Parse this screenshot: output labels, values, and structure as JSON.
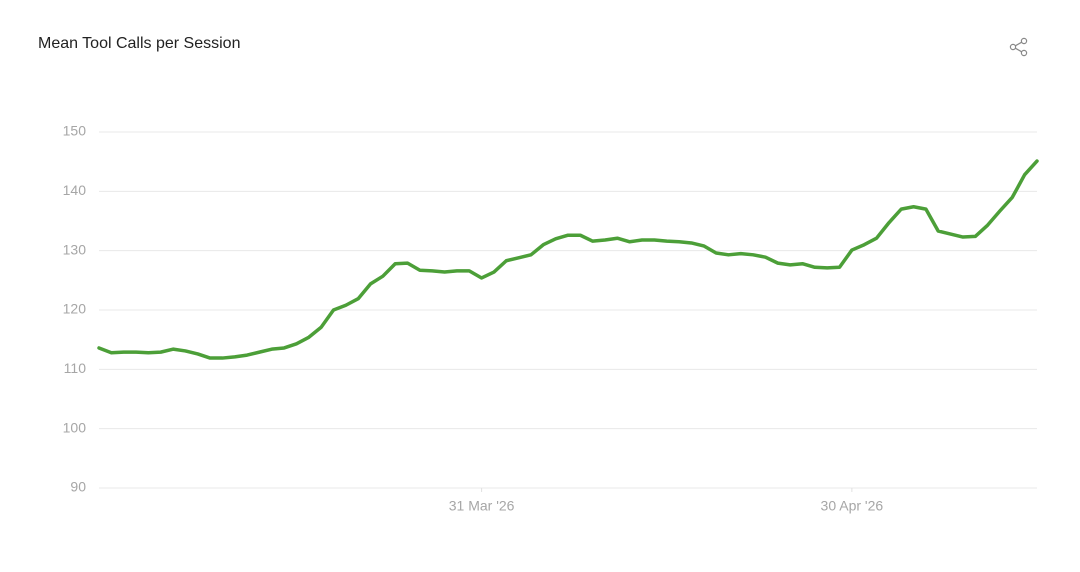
{
  "chart_data": {
    "type": "line",
    "title": "Mean Tool Calls per Session",
    "x": [
      "2026-02-28",
      "2026-03-01",
      "2026-03-02",
      "2026-03-03",
      "2026-03-04",
      "2026-03-05",
      "2026-03-06",
      "2026-03-07",
      "2026-03-08",
      "2026-03-09",
      "2026-03-10",
      "2026-03-11",
      "2026-03-12",
      "2026-03-13",
      "2026-03-14",
      "2026-03-15",
      "2026-03-16",
      "2026-03-17",
      "2026-03-18",
      "2026-03-19",
      "2026-03-20",
      "2026-03-21",
      "2026-03-22",
      "2026-03-23",
      "2026-03-24",
      "2026-03-25",
      "2026-03-26",
      "2026-03-27",
      "2026-03-28",
      "2026-03-29",
      "2026-03-30",
      "2026-03-31",
      "2026-04-01",
      "2026-04-02",
      "2026-04-03",
      "2026-04-04",
      "2026-04-05",
      "2026-04-06",
      "2026-04-07",
      "2026-04-08",
      "2026-04-09",
      "2026-04-10",
      "2026-04-11",
      "2026-04-12",
      "2026-04-13",
      "2026-04-14",
      "2026-04-15",
      "2026-04-16",
      "2026-04-17",
      "2026-04-18",
      "2026-04-19",
      "2026-04-20",
      "2026-04-21",
      "2026-04-22",
      "2026-04-23",
      "2026-04-24",
      "2026-04-25",
      "2026-04-26",
      "2026-04-27",
      "2026-04-28",
      "2026-04-29",
      "2026-04-30",
      "2026-05-01",
      "2026-05-02",
      "2026-05-03",
      "2026-05-04",
      "2026-05-05",
      "2026-05-06",
      "2026-05-07",
      "2026-05-08",
      "2026-05-09",
      "2026-05-10",
      "2026-05-11",
      "2026-05-12",
      "2026-05-13",
      "2026-05-14",
      "2026-05-15"
    ],
    "series": [
      {
        "name": "Mean Tool Calls per Session",
        "color": "#4c9f38",
        "values": [
          113.6,
          112.8,
          112.9,
          112.9,
          112.8,
          112.9,
          113.4,
          113.1,
          112.6,
          111.9,
          111.9,
          112.1,
          112.4,
          112.9,
          113.4,
          113.6,
          114.3,
          115.4,
          117.1,
          120.0,
          120.8,
          121.9,
          124.4,
          125.7,
          127.8,
          127.9,
          126.7,
          126.6,
          126.4,
          126.6,
          126.6,
          125.4,
          126.4,
          128.3,
          128.8,
          129.3,
          131.0,
          132.0,
          132.6,
          132.6,
          131.6,
          131.8,
          132.1,
          131.5,
          131.8,
          131.8,
          131.6,
          131.5,
          131.3,
          130.8,
          129.6,
          129.3,
          129.5,
          129.3,
          128.9,
          127.9,
          127.6,
          127.8,
          127.2,
          127.1,
          127.2,
          130.1,
          131.0,
          132.1,
          134.7,
          137.0,
          137.4,
          137.0,
          133.3,
          132.8,
          132.3,
          132.4,
          134.3,
          136.7,
          139.0,
          142.8,
          145.1
        ]
      }
    ],
    "xlim": [
      "2026-02-28",
      "2026-05-15"
    ],
    "xticks": [
      {
        "value": "2026-03-31",
        "label": "31 Mar '26"
      },
      {
        "value": "2026-04-30",
        "label": "30 Apr '26"
      }
    ],
    "ylim": [
      90,
      150
    ],
    "yticks": [
      90,
      100,
      110,
      120,
      130,
      140,
      150
    ],
    "grid": true
  }
}
